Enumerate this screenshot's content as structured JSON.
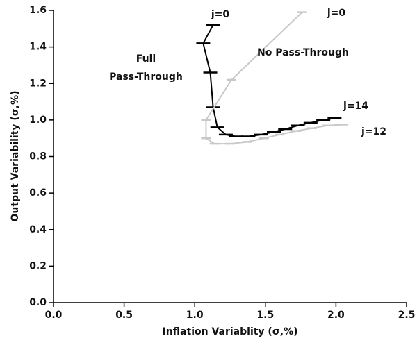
{
  "chart_data": {
    "type": "line",
    "xlabel": "Inflation Variablity (σ,%)",
    "ylabel": "Output Variability (σ,%)",
    "xlim": [
      0,
      2.5
    ],
    "ylim": [
      0,
      1.6
    ],
    "xticks": [
      {
        "value": 0,
        "label": "0.0"
      },
      0.5,
      {
        "value": 1,
        "label": "1.0"
      },
      1.5,
      {
        "value": 2,
        "label": "2.0"
      },
      2.5
    ],
    "yticks": [
      {
        "value": 0,
        "label": "0.0"
      },
      0.2,
      0.4,
      0.6,
      0.8,
      {
        "value": 1,
        "label": "1.0"
      },
      1.2,
      1.4,
      1.6
    ],
    "series": [
      {
        "color": "#000000",
        "x": [
          1.13,
          1.06,
          1.11,
          1.13,
          1.16,
          1.22,
          1.29,
          1.38,
          1.47,
          1.56,
          1.64,
          1.73,
          1.82,
          1.91,
          1.99
        ],
        "values": [
          1.52,
          1.42,
          1.26,
          1.07,
          0.96,
          0.92,
          0.91,
          0.91,
          0.92,
          0.935,
          0.95,
          0.97,
          0.985,
          1.0,
          1.01
        ]
      },
      {
        "color": "#c8c8c8",
        "x": [
          1.76,
          1.26,
          1.08,
          1.08,
          1.14,
          1.25,
          1.37,
          1.49,
          1.6,
          1.72,
          1.83,
          1.94,
          2.05
        ],
        "values": [
          1.59,
          1.22,
          1.0,
          0.9,
          0.87,
          0.87,
          0.88,
          0.9,
          0.92,
          0.94,
          0.955,
          0.97,
          0.975
        ]
      }
    ],
    "annotations": [
      "j=0",
      "j=0",
      "j=14",
      "j=12",
      "Full",
      "Pass-Through",
      "No Pass-Through"
    ]
  }
}
